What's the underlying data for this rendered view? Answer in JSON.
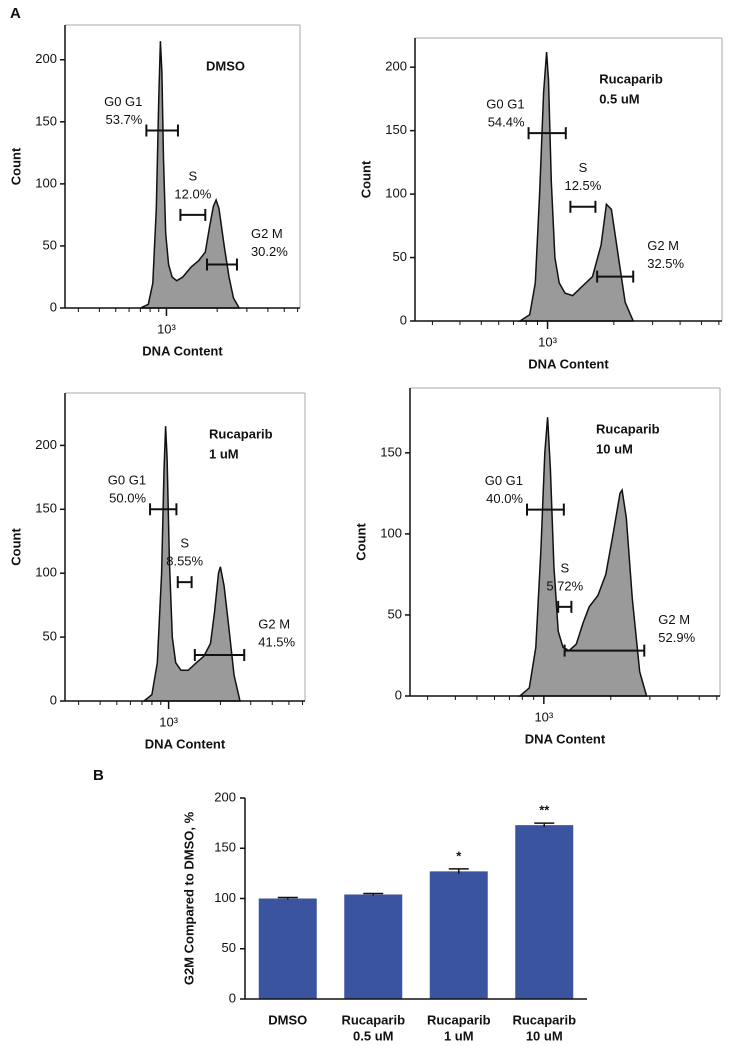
{
  "panel_labels": [
    "A",
    "B"
  ],
  "chart_data": [
    {
      "type": "area",
      "title": [
        "DMSO"
      ],
      "xlabel": "DNA Content",
      "ylabel": "Count",
      "color": "#9a9a9a",
      "xlog": true,
      "xlim": [
        250,
        6200
      ],
      "xticks": [
        {
          "value": 1000,
          "label": "10³"
        }
      ],
      "minor_xticks": [
        300,
        400,
        500,
        600,
        700,
        800,
        900,
        2000,
        3000,
        4000,
        5000,
        6000
      ],
      "ylim": [
        0,
        228
      ],
      "yticks": [
        0,
        50,
        100,
        150,
        200
      ],
      "x": [
        700,
        780,
        830,
        870,
        900,
        920,
        940,
        960,
        990,
        1030,
        1080,
        1150,
        1250,
        1400,
        1550,
        1700,
        1800,
        1900,
        1970,
        2050,
        2200,
        2350,
        2500,
        2700
      ],
      "values": [
        0,
        3,
        20,
        80,
        170,
        215,
        190,
        120,
        60,
        35,
        25,
        22,
        25,
        33,
        38,
        45,
        65,
        82,
        87,
        80,
        50,
        25,
        8,
        0
      ],
      "gates": [
        {
          "name": "G0 G1",
          "value": 53.7,
          "value_label": "53.7%",
          "x": [
            760,
            1170
          ],
          "y": 143
        },
        {
          "name": "S",
          "value": 12.0,
          "value_label": "12.0%",
          "x": [
            1210,
            1700
          ],
          "y": 75
        },
        {
          "name": "G2 M",
          "value": 30.2,
          "value_label": "30.2%",
          "x": [
            1740,
            2620
          ],
          "y": 35
        }
      ]
    },
    {
      "type": "area",
      "title": [
        "Rucaparib",
        "0.5 uM"
      ],
      "xlabel": "DNA Content",
      "ylabel": "Count",
      "color": "#9a9a9a",
      "xlog": true,
      "xlim": [
        250,
        6200
      ],
      "xticks": [
        {
          "value": 1000,
          "label": "10³"
        }
      ],
      "minor_xticks": [
        300,
        400,
        500,
        600,
        700,
        800,
        900,
        2000,
        3000,
        4000,
        5000,
        6000
      ],
      "ylim": [
        0,
        223
      ],
      "yticks": [
        0,
        50,
        100,
        150,
        200
      ],
      "x": [
        750,
        830,
        880,
        920,
        960,
        990,
        1010,
        1040,
        1080,
        1130,
        1200,
        1300,
        1450,
        1600,
        1750,
        1850,
        1950,
        2100,
        2250,
        2450
      ],
      "values": [
        0,
        5,
        30,
        100,
        180,
        212,
        190,
        110,
        50,
        30,
        22,
        20,
        28,
        35,
        60,
        92,
        88,
        50,
        15,
        0
      ],
      "gates": [
        {
          "name": "G0 G1",
          "value": 54.4,
          "value_label": "54.4%",
          "x": [
            820,
            1210
          ],
          "y": 148
        },
        {
          "name": "S",
          "value": 12.5,
          "value_label": "12.5%",
          "x": [
            1270,
            1650
          ],
          "y": 90
        },
        {
          "name": "G2 M",
          "value": 32.5,
          "value_label": "32.5%",
          "x": [
            1680,
            2450
          ],
          "y": 35
        }
      ]
    },
    {
      "type": "area",
      "title": [
        "Rucaparib",
        "1 uM"
      ],
      "xlabel": "DNA Content",
      "ylabel": "Count",
      "color": "#9a9a9a",
      "xlog": true,
      "xlim": [
        250,
        6200
      ],
      "xticks": [
        {
          "value": 1000,
          "label": "10³"
        }
      ],
      "minor_xticks": [
        300,
        400,
        500,
        600,
        700,
        800,
        900,
        2000,
        3000,
        4000,
        5000,
        6000
      ],
      "ylim": [
        0,
        241
      ],
      "yticks": [
        0,
        50,
        100,
        150,
        200
      ],
      "x": [
        720,
        800,
        860,
        910,
        940,
        960,
        980,
        1010,
        1050,
        1100,
        1180,
        1300,
        1450,
        1600,
        1750,
        1850,
        1950,
        2000,
        2100,
        2250,
        2400,
        2600
      ],
      "values": [
        0,
        5,
        30,
        100,
        180,
        215,
        190,
        110,
        50,
        30,
        24,
        24,
        30,
        35,
        45,
        70,
        100,
        105,
        90,
        55,
        20,
        0
      ],
      "gates": [
        {
          "name": "G0 G1",
          "value": 50.0,
          "value_label": "50.0%",
          "x": [
            780,
            1110
          ],
          "y": 150
        },
        {
          "name": "S",
          "value": 8.55,
          "value_label": "8.55%",
          "x": [
            1130,
            1360
          ],
          "y": 93
        },
        {
          "name": "G2 M",
          "value": 41.5,
          "value_label": "41.5%",
          "x": [
            1420,
            2750
          ],
          "y": 36
        }
      ]
    },
    {
      "type": "area",
      "title": [
        "Rucaparib",
        "10 uM"
      ],
      "xlabel": "DNA Content",
      "ylabel": "Count",
      "color": "#9a9a9a",
      "xlog": true,
      "xlim": [
        250,
        6200
      ],
      "xticks": [
        {
          "value": 1000,
          "label": "10³"
        }
      ],
      "minor_xticks": [
        300,
        400,
        500,
        600,
        700,
        800,
        900,
        2000,
        3000,
        4000,
        5000,
        6000
      ],
      "ylim": [
        0,
        190
      ],
      "yticks": [
        0,
        50,
        100,
        150
      ],
      "x": [
        780,
        860,
        920,
        970,
        1010,
        1040,
        1070,
        1110,
        1160,
        1220,
        1300,
        1400,
        1500,
        1600,
        1750,
        1900,
        2050,
        2200,
        2250,
        2350,
        2500,
        2700,
        2900
      ],
      "values": [
        0,
        5,
        30,
        90,
        150,
        172,
        140,
        80,
        40,
        30,
        28,
        32,
        45,
        55,
        62,
        75,
        100,
        125,
        127,
        110,
        60,
        15,
        0
      ],
      "gates": [
        {
          "name": "G0 G1",
          "value": 40.0,
          "value_label": "40.0%",
          "x": [
            840,
            1230
          ],
          "y": 115
        },
        {
          "name": "S",
          "value": 5.72,
          "value_label": "5.72%",
          "x": [
            1160,
            1330
          ],
          "y": 55
        },
        {
          "name": "G2 M",
          "value": 52.9,
          "value_label": "52.9%",
          "x": [
            1240,
            2830
          ],
          "y": 28
        }
      ]
    },
    {
      "type": "bar",
      "ylabel": "G2M Compared to DMSO, %",
      "color": "#3b54a0",
      "categories": [
        [
          "DMSO"
        ],
        [
          "Rucaparib",
          "0.5 uM"
        ],
        [
          "Rucaparib",
          "1 uM"
        ],
        [
          "Rucaparib",
          "10 uM"
        ]
      ],
      "values": [
        100,
        104,
        127,
        173
      ],
      "errors": [
        1,
        1,
        2.5,
        2
      ],
      "annotations": [
        null,
        null,
        "*",
        "**"
      ],
      "ylim": [
        0,
        200
      ],
      "yticks": [
        0,
        50,
        100,
        150,
        200
      ]
    }
  ]
}
